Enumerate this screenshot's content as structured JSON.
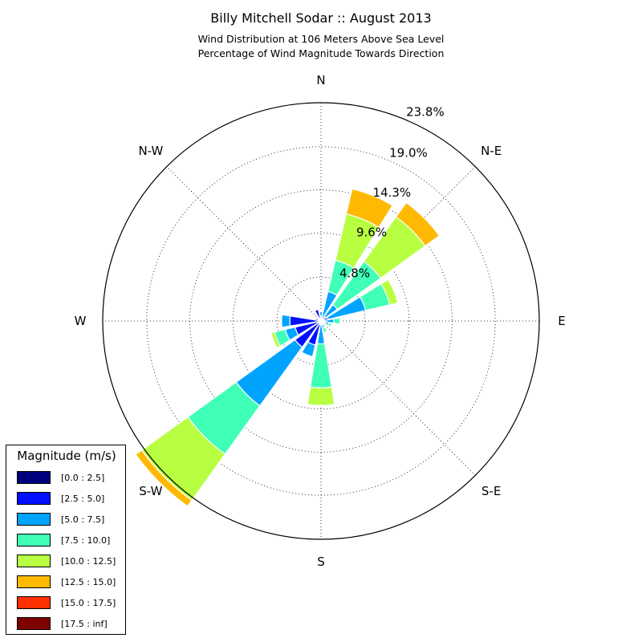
{
  "chart_data": {
    "type": "windrose",
    "title": "Billy Mitchell Sodar :: August 2013",
    "subtitle_lines": [
      "Wind Distribution at 106 Meters Above Sea Level",
      "Percentage of Wind Magnitude Towards Direction"
    ],
    "direction_labels": [
      "N",
      "N-E",
      "E",
      "S-E",
      "S",
      "S-W",
      "W",
      "N-W"
    ],
    "radial_labels": [
      "4.8%",
      "9.6%",
      "14.3%",
      "19.0%",
      "23.8%"
    ],
    "radial_values": [
      4.8,
      9.6,
      14.3,
      19.0,
      23.8
    ],
    "rmax": 23.8,
    "legend_title": "Magnitude (m/s)",
    "bins": [
      {
        "label": "[0.0 : 2.5]",
        "color": "#00007f"
      },
      {
        "label": "[2.5 : 5.0]",
        "color": "#0010ff"
      },
      {
        "label": "[5.0 : 7.5]",
        "color": "#00a4ff"
      },
      {
        "label": "[7.5 : 10.0]",
        "color": "#40ffb7"
      },
      {
        "label": "[10.0 : 12.5]",
        "color": "#b7ff40"
      },
      {
        "label": "[12.5 : 15.0]",
        "color": "#ffb900"
      },
      {
        "label": "[15.0 : 17.5]",
        "color": "#ff3000"
      },
      {
        "label": "[17.5 : inf]",
        "color": "#7f0000"
      }
    ],
    "sectors": [
      {
        "direction_deg": 0,
        "cumulative": [
          0.1,
          0.5,
          1.0,
          1.0,
          1.0,
          1.0,
          1.0,
          1.0
        ]
      },
      {
        "direction_deg": 22.5,
        "cumulative": [
          0.1,
          0.3,
          3.3,
          6.8,
          12.0,
          14.8,
          14.8,
          14.8
        ]
      },
      {
        "direction_deg": 45,
        "cumulative": [
          0.1,
          0.6,
          2.2,
          8.0,
          14.0,
          15.9,
          15.9,
          15.9
        ]
      },
      {
        "direction_deg": 67.5,
        "cumulative": [
          0.1,
          0.8,
          5.0,
          7.7,
          8.6,
          8.6,
          8.6,
          8.6
        ]
      },
      {
        "direction_deg": 90,
        "cumulative": [
          0.1,
          0.4,
          1.4,
          2.1,
          2.2,
          2.2,
          2.2,
          2.2
        ]
      },
      {
        "direction_deg": 112.5,
        "cumulative": [
          0.1,
          0.5,
          0.9,
          1.2,
          1.2,
          1.2,
          1.2,
          1.2
        ]
      },
      {
        "direction_deg": 135,
        "cumulative": [
          0.1,
          0.3,
          0.5,
          0.7,
          0.7,
          0.7,
          0.7,
          0.7
        ]
      },
      {
        "direction_deg": 157.5,
        "cumulative": [
          0.1,
          0.3,
          0.8,
          1.3,
          1.3,
          1.3,
          1.3,
          1.3
        ]
      },
      {
        "direction_deg": 180,
        "cumulative": [
          0.1,
          0.4,
          2.5,
          7.3,
          9.2,
          9.2,
          9.2,
          9.2
        ]
      },
      {
        "direction_deg": 202.5,
        "cumulative": [
          0.1,
          2.7,
          4.0,
          4.0,
          4.0,
          4.0,
          4.0,
          4.0
        ]
      },
      {
        "direction_deg": 225,
        "cumulative": [
          0.1,
          3.5,
          11.4,
          17.9,
          24.1,
          24.9,
          24.9,
          24.9
        ]
      },
      {
        "direction_deg": 247.5,
        "cumulative": [
          0.1,
          2.9,
          4.0,
          5.2,
          5.6,
          5.6,
          5.6,
          5.6
        ]
      },
      {
        "direction_deg": 270,
        "cumulative": [
          0.1,
          3.4,
          4.3,
          4.3,
          4.3,
          4.3,
          4.3,
          4.3
        ]
      },
      {
        "direction_deg": 292.5,
        "cumulative": [
          0.1,
          0.6,
          0.6,
          0.6,
          0.6,
          0.6,
          0.6,
          0.6
        ]
      },
      {
        "direction_deg": 315,
        "cumulative": [
          0.1,
          0.4,
          0.4,
          0.4,
          0.4,
          0.4,
          0.4,
          0.4
        ]
      },
      {
        "direction_deg": 337.5,
        "cumulative": [
          0.1,
          1.3,
          1.3,
          1.3,
          1.3,
          1.3,
          1.3,
          1.3
        ]
      }
    ]
  }
}
